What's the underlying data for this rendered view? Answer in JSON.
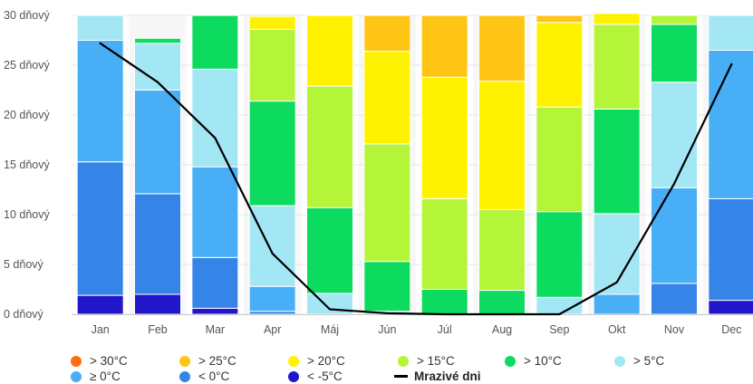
{
  "chart_data": {
    "type": "bar",
    "stacked": true,
    "categories": [
      "Jan",
      "Feb",
      "Mar",
      "Apr",
      "Máj",
      "Jún",
      "Júl",
      "Aug",
      "Sep",
      "Okt",
      "Nov",
      "Dec"
    ],
    "y_ticks": [
      "0 dňový",
      "5 dňový",
      "10 dňový",
      "15 dňový",
      "20 dňový",
      "25 dňový",
      "30 dňový"
    ],
    "ylim": [
      0,
      30
    ],
    "grid": true,
    "legend_position": "bottom",
    "series": [
      {
        "name": "< -5°C",
        "color": "#2116c9",
        "values": [
          1.9,
          2.0,
          0.6,
          0,
          0,
          0,
          0,
          0,
          0,
          0,
          0,
          1.4
        ]
      },
      {
        "name": "< 0°C",
        "color": "#3585e8",
        "values": [
          13.4,
          10.1,
          5.1,
          0.3,
          0,
          0,
          0,
          0,
          0,
          0,
          3.1,
          10.2
        ]
      },
      {
        "name": "≥ 0°C",
        "color": "#48aef5",
        "values": [
          12.2,
          10.4,
          9.1,
          2.5,
          0,
          0,
          0,
          0,
          0,
          2.0,
          9.6,
          14.9
        ]
      },
      {
        "name": "> 5°C",
        "color": "#a3e7f5",
        "values": [
          2.5,
          4.7,
          9.8,
          8.1,
          2.1,
          0.3,
          0,
          0,
          1.7,
          8.1,
          10.6,
          3.5
        ]
      },
      {
        "name": "> 10°C",
        "color": "#0ddb5f",
        "values": [
          0,
          0.5,
          5.4,
          10.5,
          8.6,
          5.0,
          2.5,
          2.4,
          8.6,
          10.5,
          5.8,
          0
        ]
      },
      {
        "name": "> 15°C",
        "color": "#b4f53a",
        "values": [
          0,
          0,
          0,
          7.2,
          12.2,
          11.8,
          9.1,
          8.1,
          10.5,
          8.5,
          0.9,
          0
        ]
      },
      {
        "name": "> 20°C",
        "color": "#fff200",
        "values": [
          0,
          0,
          0,
          1.3,
          7.1,
          9.3,
          12.2,
          12.9,
          8.5,
          1.1,
          0,
          0
        ]
      },
      {
        "name": "> 25°C",
        "color": "#fec514",
        "values": [
          0,
          0,
          0,
          0,
          0,
          3.6,
          6.2,
          6.6,
          0.7,
          0,
          0,
          0
        ]
      },
      {
        "name": "> 30°C",
        "color": "#fe6e10",
        "values": [
          0,
          0,
          0,
          0,
          0,
          0,
          0,
          0,
          0,
          0,
          0,
          0
        ]
      }
    ],
    "line": {
      "name": "Mrazivé dni",
      "color": "#000000",
      "values": [
        27.2,
        23.3,
        17.7,
        6.1,
        0.5,
        0.1,
        0,
        0,
        0,
        3.2,
        13.1,
        25.1
      ]
    }
  },
  "legend": {
    "row1": [
      {
        "label": "> 30°C",
        "color": "#fe6e10"
      },
      {
        "label": "> 25°C",
        "color": "#fec514"
      },
      {
        "label": "> 20°C",
        "color": "#fff200"
      },
      {
        "label": "> 15°C",
        "color": "#b4f53a"
      },
      {
        "label": "> 10°C",
        "color": "#0ddb5f"
      },
      {
        "label": "> 5°C",
        "color": "#a3e7f5"
      }
    ],
    "row2": [
      {
        "label": "≥ 0°C",
        "color": "#48aef5"
      },
      {
        "label": "< 0°C",
        "color": "#3585e8"
      },
      {
        "label": "< -5°C",
        "color": "#2116c9"
      },
      {
        "label": "Mrazivé dni",
        "color": "#000000",
        "type": "line"
      }
    ]
  }
}
